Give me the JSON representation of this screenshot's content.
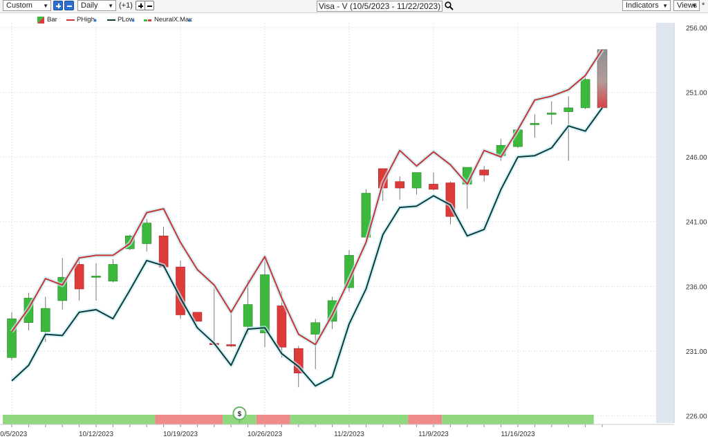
{
  "toolbar": {
    "preset": "Custom",
    "interval": "Daily",
    "offset": "(+1)",
    "title": "Visa - V (10/5/2023 - 11/22/2023)",
    "indicators": "Indicators",
    "views": "Views",
    "views_suffix": "*"
  },
  "legend": {
    "bar": "Bar",
    "phigh": "PHigh",
    "plow": "PLow",
    "neuralx": "NeuralX.Max"
  },
  "colors": {
    "up": "#3cb83c",
    "down": "#dd3a3a",
    "phigh": "#c93434",
    "plow": "#0d3a3a",
    "band_green": "#90d880",
    "band_red": "#ee8a8a",
    "forecast": "#dfe6f0"
  },
  "chart_data": {
    "type": "candlestick",
    "ylim": [
      226,
      257
    ],
    "y_ticks": [
      "226.00",
      "231.00",
      "236.00",
      "241.00",
      "246.00",
      "251.00",
      "256.00"
    ],
    "x_ticks": [
      {
        "i": 0,
        "label": "10/5/2023"
      },
      {
        "i": 5,
        "label": "10/12/2023"
      },
      {
        "i": 10,
        "label": "10/19/2023"
      },
      {
        "i": 15,
        "label": "10/26/2023"
      },
      {
        "i": 20,
        "label": "11/2/2023"
      },
      {
        "i": 25,
        "label": "11/9/2023"
      },
      {
        "i": 30,
        "label": "11/16/2023"
      }
    ],
    "bars": [
      {
        "o": 230.5,
        "h": 234.0,
        "l": 230.3,
        "c": 233.5
      },
      {
        "o": 233.2,
        "h": 235.5,
        "l": 232.6,
        "c": 235.1
      },
      {
        "o": 232.5,
        "h": 235.2,
        "l": 231.7,
        "c": 234.3
      },
      {
        "o": 234.9,
        "h": 238.2,
        "l": 234.2,
        "c": 236.7
      },
      {
        "o": 237.7,
        "h": 238.1,
        "l": 234.9,
        "c": 235.8
      },
      {
        "o": 236.7,
        "h": 237.8,
        "l": 234.9,
        "c": 236.8
      },
      {
        "o": 236.4,
        "h": 238.1,
        "l": 236.3,
        "c": 237.7
      },
      {
        "o": 238.9,
        "h": 240.0,
        "l": 238.8,
        "c": 239.9
      },
      {
        "o": 239.3,
        "h": 241.2,
        "l": 238.7,
        "c": 240.9
      },
      {
        "o": 239.9,
        "h": 240.6,
        "l": 237.4,
        "c": 237.5
      },
      {
        "o": 237.5,
        "h": 238.0,
        "l": 233.5,
        "c": 233.8
      },
      {
        "o": 234.0,
        "h": 234.0,
        "l": 233.3,
        "c": 233.3
      },
      {
        "o": 231.6,
        "h": 235.9,
        "l": 231.5,
        "c": 231.5
      },
      {
        "o": 231.5,
        "h": 234.2,
        "l": 231.3,
        "c": 231.4
      },
      {
        "o": 232.9,
        "h": 236.5,
        "l": 232.3,
        "c": 234.6
      },
      {
        "o": 232.4,
        "h": 238.3,
        "l": 231.3,
        "c": 236.9
      },
      {
        "o": 234.5,
        "h": 235.6,
        "l": 230.5,
        "c": 231.3
      },
      {
        "o": 231.2,
        "h": 231.4,
        "l": 228.2,
        "c": 229.3
      },
      {
        "o": 232.3,
        "h": 233.5,
        "l": 229.6,
        "c": 233.2
      },
      {
        "o": 233.3,
        "h": 235.2,
        "l": 232.7,
        "c": 234.9
      },
      {
        "o": 235.9,
        "h": 238.8,
        "l": 235.6,
        "c": 238.4
      },
      {
        "o": 239.8,
        "h": 243.5,
        "l": 239.7,
        "c": 243.2
      },
      {
        "o": 245.1,
        "h": 245.1,
        "l": 242.6,
        "c": 243.6
      },
      {
        "o": 244.1,
        "h": 244.5,
        "l": 242.7,
        "c": 243.6
      },
      {
        "o": 243.6,
        "h": 244.8,
        "l": 243.1,
        "c": 244.8
      },
      {
        "o": 243.9,
        "h": 244.8,
        "l": 243.4,
        "c": 243.5
      },
      {
        "o": 244.0,
        "h": 244.1,
        "l": 240.8,
        "c": 241.4
      },
      {
        "o": 243.9,
        "h": 245.2,
        "l": 242.0,
        "c": 245.2
      },
      {
        "o": 245.0,
        "h": 245.3,
        "l": 244.1,
        "c": 244.6
      },
      {
        "o": 246.1,
        "h": 247.4,
        "l": 245.7,
        "c": 246.9
      },
      {
        "o": 246.8,
        "h": 248.2,
        "l": 246.7,
        "c": 248.1
      },
      {
        "o": 248.6,
        "h": 249.3,
        "l": 247.5,
        "c": 248.6
      },
      {
        "o": 249.3,
        "h": 250.3,
        "l": 248.5,
        "c": 249.4
      },
      {
        "o": 249.5,
        "h": 250.7,
        "l": 245.7,
        "c": 249.8
      },
      {
        "o": 249.8,
        "h": 252.3,
        "l": 249.7,
        "c": 252.0
      }
    ],
    "forecast_bar": {
      "top": 254.3,
      "bottom": 249.8
    },
    "phigh": [
      232.5,
      234.3,
      236.6,
      236.1,
      238.2,
      238.4,
      238.4,
      239.3,
      241.7,
      242.0,
      239.4,
      237.3,
      236.1,
      234.0,
      236.2,
      238.3,
      235.1,
      232.3,
      231.5,
      233.8,
      236.5,
      239.4,
      244.0,
      246.5,
      245.3,
      246.4,
      245.4,
      243.9,
      246.5,
      246.0,
      248.1,
      250.4,
      250.7,
      251.2,
      252.3,
      254.3
    ],
    "plow": [
      228.7,
      229.9,
      232.3,
      232.2,
      234.0,
      234.2,
      233.5,
      235.7,
      238.0,
      237.6,
      235.1,
      232.8,
      231.6,
      229.9,
      232.7,
      232.8,
      230.8,
      229.8,
      228.3,
      229.0,
      233.1,
      235.8,
      240.0,
      242.1,
      242.2,
      243.0,
      242.3,
      239.9,
      240.4,
      243.5,
      246.0,
      246.1,
      246.7,
      248.4,
      248.0,
      249.8
    ],
    "band": [
      {
        "from": 0,
        "to": 8.5,
        "color": "green"
      },
      {
        "from": 8.5,
        "to": 12.5,
        "color": "red"
      },
      {
        "from": 12.5,
        "to": 14.5,
        "color": "green"
      },
      {
        "from": 14.5,
        "to": 16.5,
        "color": "red"
      },
      {
        "from": 16.5,
        "to": 23.5,
        "color": "green"
      },
      {
        "from": 23.5,
        "to": 25.5,
        "color": "red"
      },
      {
        "from": 25.5,
        "to": 34.5,
        "color": "green"
      }
    ],
    "marker": {
      "i": 13.5,
      "label": "$"
    }
  }
}
